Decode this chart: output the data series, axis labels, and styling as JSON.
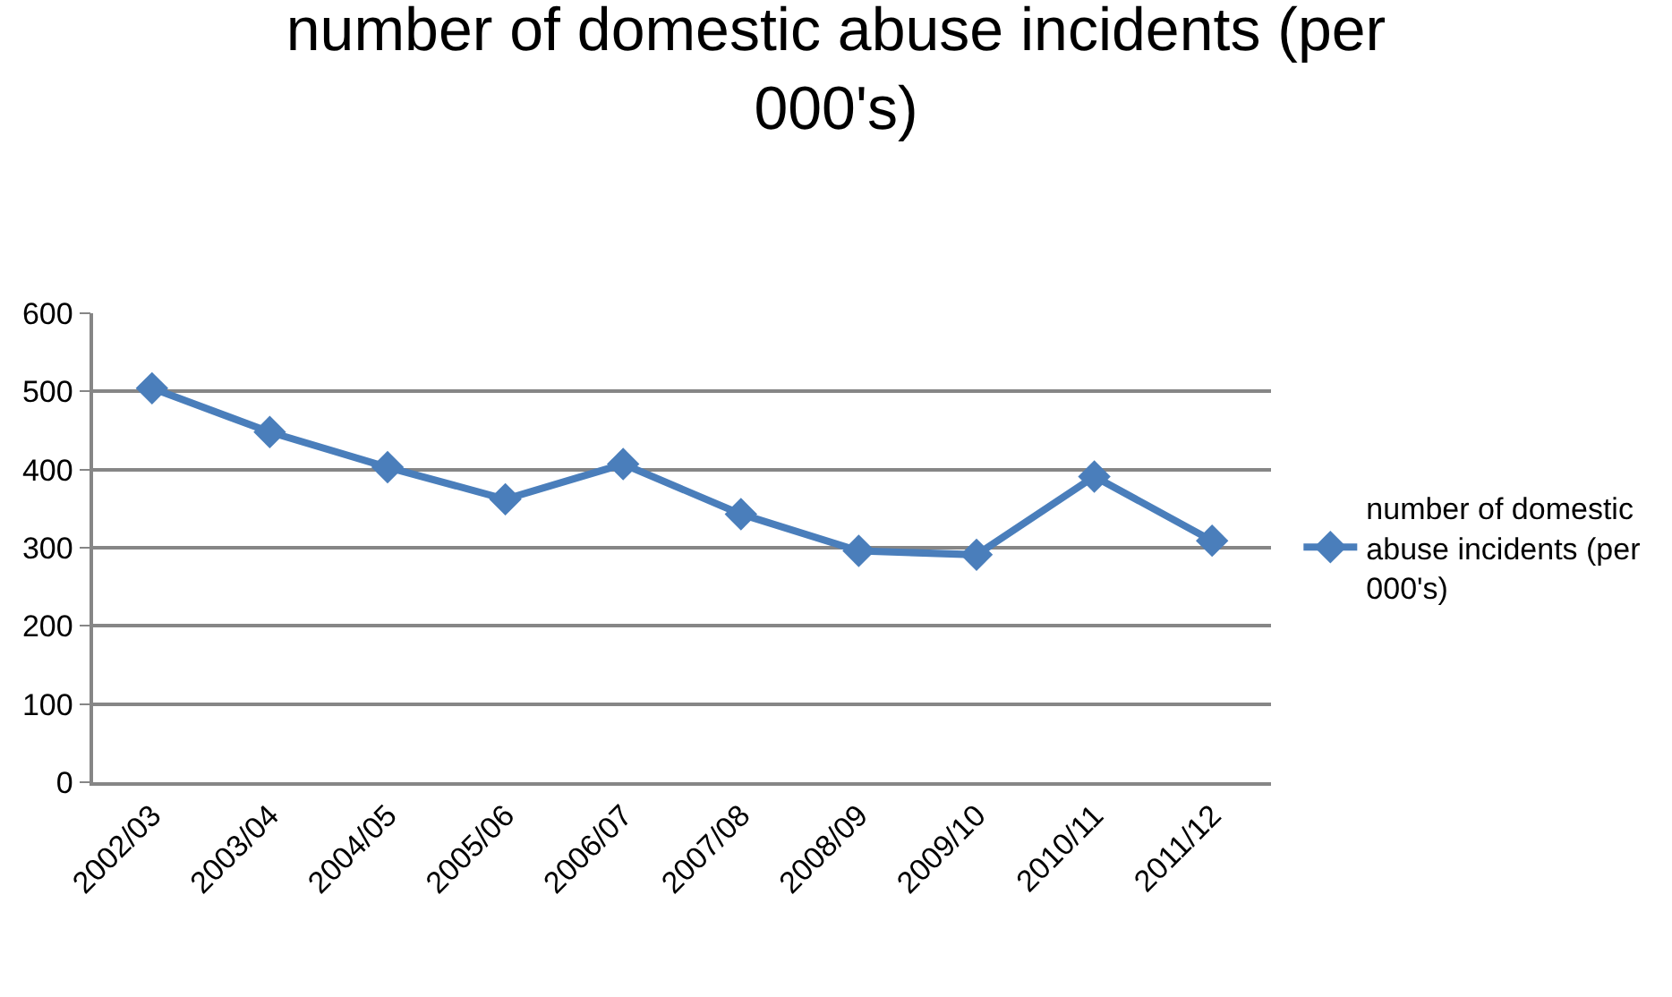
{
  "chart_data": {
    "type": "line",
    "title": "number of domestic abuse incidents (per 000's)",
    "categories": [
      "2002/03",
      "2003/04",
      "2004/05",
      "2005/06",
      "2006/07",
      "2007/08",
      "2008/09",
      "2009/10",
      "2010/11",
      "2011/12"
    ],
    "series": [
      {
        "name": "number of domestic abuse incidents (per 000's)",
        "color": "#4a7ebb",
        "values": [
          504,
          448,
          403,
          362,
          407,
          343,
          296,
          291,
          391,
          309
        ]
      }
    ],
    "ylim": [
      0,
      600
    ],
    "yticks": [
      0,
      100,
      200,
      300,
      400,
      500,
      600
    ],
    "grid": "y",
    "legend": "right",
    "marker": "diamond",
    "line_style": "solid"
  }
}
